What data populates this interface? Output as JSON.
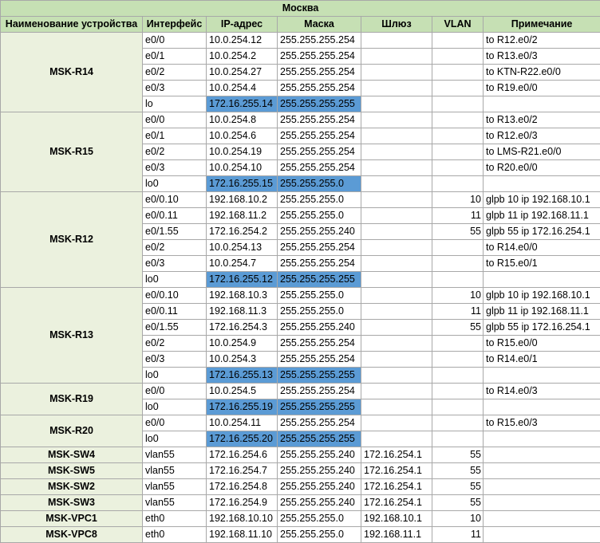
{
  "title": "Москва",
  "headers": [
    "Наименование устройства",
    "Интерфейс",
    "IP-адрес",
    "Маска",
    "Шлюз",
    "VLAN",
    "Примечание"
  ],
  "colors": {
    "header_fill": "#c6e0b4",
    "device_fill": "#ebf1de",
    "highlight": "#5b9bd5",
    "grid": "#a8a8a8"
  },
  "devices": [
    {
      "name": "MSK-R14",
      "rows": [
        {
          "iface": "e0/0",
          "ip": "10.0.254.12",
          "mask": "255.255.255.254",
          "gw": "",
          "vlan": "",
          "note": "to R12.e0/2"
        },
        {
          "iface": "e0/1",
          "ip": "10.0.254.2",
          "mask": "255.255.255.254",
          "gw": "",
          "vlan": "",
          "note": "to R13.e0/3"
        },
        {
          "iface": "e0/2",
          "ip": "10.0.254.27",
          "mask": "255.255.255.254",
          "gw": "",
          "vlan": "",
          "note": "to KTN-R22.e0/0"
        },
        {
          "iface": "e0/3",
          "ip": "10.0.254.4",
          "mask": "255.255.255.254",
          "gw": "",
          "vlan": "",
          "note": "to R19.e0/0"
        },
        {
          "iface": "lo",
          "ip": "172.16.255.14",
          "mask": "255.255.255.255",
          "gw": "",
          "vlan": "",
          "note": "",
          "hl": true
        }
      ]
    },
    {
      "name": "MSK-R15",
      "rows": [
        {
          "iface": "e0/0",
          "ip": "10.0.254.8",
          "mask": "255.255.255.254",
          "gw": "",
          "vlan": "",
          "note": "to R13.e0/2"
        },
        {
          "iface": "e0/1",
          "ip": "10.0.254.6",
          "mask": "255.255.255.254",
          "gw": "",
          "vlan": "",
          "note": "to R12.e0/3"
        },
        {
          "iface": "e0/2",
          "ip": "10.0.254.19",
          "mask": "255.255.255.254",
          "gw": "",
          "vlan": "",
          "note": "to LMS-R21.e0/0"
        },
        {
          "iface": "e0/3",
          "ip": "10.0.254.10",
          "mask": "255.255.255.254",
          "gw": "",
          "vlan": "",
          "note": "to R20.e0/0"
        },
        {
          "iface": "lo0",
          "ip": "172.16.255.15",
          "mask": "255.255.255.0",
          "gw": "",
          "vlan": "",
          "note": "",
          "hl": true
        }
      ]
    },
    {
      "name": "MSK-R12",
      "rows": [
        {
          "iface": "e0/0.10",
          "ip": "192.168.10.2",
          "mask": "255.255.255.0",
          "gw": "",
          "vlan": "10",
          "note": "glpb 10 ip 192.168.10.1"
        },
        {
          "iface": "e0/0.11",
          "ip": "192.168.11.2",
          "mask": "255.255.255.0",
          "gw": "",
          "vlan": "11",
          "note": "glpb 11 ip 192.168.11.1"
        },
        {
          "iface": "e0/1.55",
          "ip": "172.16.254.2",
          "mask": "255.255.255.240",
          "gw": "",
          "vlan": "55",
          "note": "glpb 55 ip 172.16.254.1"
        },
        {
          "iface": "e0/2",
          "ip": "10.0.254.13",
          "mask": "255.255.255.254",
          "gw": "",
          "vlan": "",
          "note": "to R14.e0/0"
        },
        {
          "iface": "e0/3",
          "ip": "10.0.254.7",
          "mask": "255.255.255.254",
          "gw": "",
          "vlan": "",
          "note": "to R15.e0/1"
        },
        {
          "iface": "lo0",
          "ip": "172.16.255.12",
          "mask": "255.255.255.255",
          "gw": "",
          "vlan": "",
          "note": "",
          "hl": true
        }
      ]
    },
    {
      "name": "MSK-R13",
      "rows": [
        {
          "iface": "e0/0.10",
          "ip": "192.168.10.3",
          "mask": "255.255.255.0",
          "gw": "",
          "vlan": "10",
          "note": "glpb 10 ip 192.168.10.1"
        },
        {
          "iface": "e0/0.11",
          "ip": "192.168.11.3",
          "mask": "255.255.255.0",
          "gw": "",
          "vlan": "11",
          "note": "glpb 11 ip 192.168.11.1"
        },
        {
          "iface": "e0/1.55",
          "ip": "172.16.254.3",
          "mask": "255.255.255.240",
          "gw": "",
          "vlan": "55",
          "note": "glpb 55 ip 172.16.254.1"
        },
        {
          "iface": "e0/2",
          "ip": "10.0.254.9",
          "mask": "255.255.255.254",
          "gw": "",
          "vlan": "",
          "note": "to R15.e0/0"
        },
        {
          "iface": "e0/3",
          "ip": "10.0.254.3",
          "mask": "255.255.255.254",
          "gw": "",
          "vlan": "",
          "note": "to R14.e0/1"
        },
        {
          "iface": "lo0",
          "ip": "172.16.255.13",
          "mask": "255.255.255.255",
          "gw": "",
          "vlan": "",
          "note": "",
          "hl": true
        }
      ]
    },
    {
      "name": "MSK-R19",
      "rows": [
        {
          "iface": "e0/0",
          "ip": "10.0.254.5",
          "mask": "255.255.255.254",
          "gw": "",
          "vlan": "",
          "note": "to R14.e0/3"
        },
        {
          "iface": "lo0",
          "ip": "172.16.255.19",
          "mask": "255.255.255.255",
          "gw": "",
          "vlan": "",
          "note": "",
          "hl": true
        }
      ]
    },
    {
      "name": "MSK-R20",
      "rows": [
        {
          "iface": "e0/0",
          "ip": "10.0.254.11",
          "mask": "255.255.255.254",
          "gw": "",
          "vlan": "",
          "note": "to R15.e0/3"
        },
        {
          "iface": "lo0",
          "ip": "172.16.255.20",
          "mask": "255.255.255.255",
          "gw": "",
          "vlan": "",
          "note": "",
          "hl": true
        }
      ]
    },
    {
      "name": "MSK-SW4",
      "rows": [
        {
          "iface": "vlan55",
          "ip": "172.16.254.6",
          "mask": "255.255.255.240",
          "gw": "172.16.254.1",
          "vlan": "55",
          "note": ""
        }
      ]
    },
    {
      "name": "MSK-SW5",
      "rows": [
        {
          "iface": "vlan55",
          "ip": "172.16.254.7",
          "mask": "255.255.255.240",
          "gw": "172.16.254.1",
          "vlan": "55",
          "note": ""
        }
      ]
    },
    {
      "name": "MSK-SW2",
      "rows": [
        {
          "iface": "vlan55",
          "ip": "172.16.254.8",
          "mask": "255.255.255.240",
          "gw": "172.16.254.1",
          "vlan": "55",
          "note": ""
        }
      ]
    },
    {
      "name": "MSK-SW3",
      "rows": [
        {
          "iface": "vlan55",
          "ip": "172.16.254.9",
          "mask": "255.255.255.240",
          "gw": "172.16.254.1",
          "vlan": "55",
          "note": ""
        }
      ]
    },
    {
      "name": "MSK-VPC1",
      "rows": [
        {
          "iface": "eth0",
          "ip": "192.168.10.10",
          "mask": "255.255.255.0",
          "gw": "192.168.10.1",
          "vlan": "10",
          "note": ""
        }
      ]
    },
    {
      "name": "MSK-VPC8",
      "rows": [
        {
          "iface": "eth0",
          "ip": "192.168.11.10",
          "mask": "255.255.255.0",
          "gw": "192.168.11.1",
          "vlan": "11",
          "note": ""
        }
      ]
    }
  ]
}
